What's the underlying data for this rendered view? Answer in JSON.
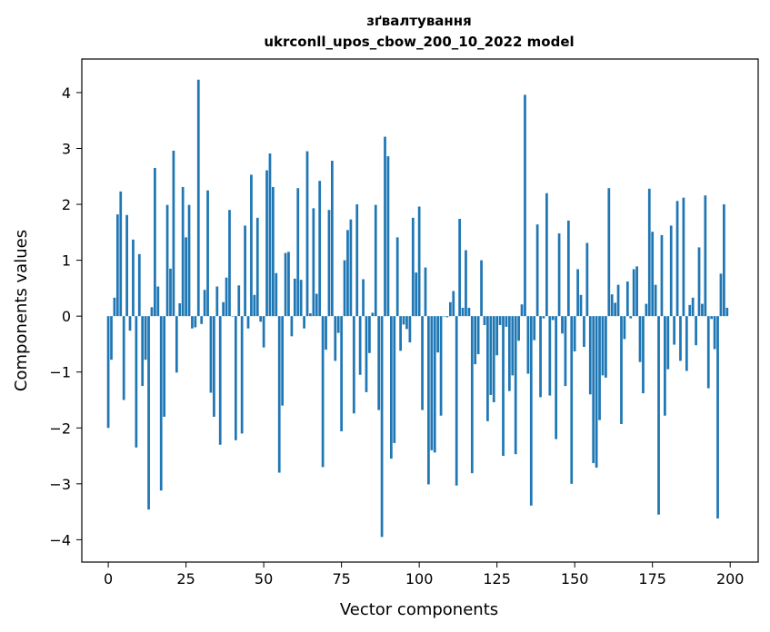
{
  "chart_data": {
    "type": "bar",
    "title": "зґвалтування",
    "subtitle": "ukrconll_upos_cbow_200_10_2022 model",
    "xlabel": "Vector components",
    "ylabel": "Components values",
    "xlim": [
      -8.5,
      209.0
    ],
    "ylim": [
      -4.4,
      4.6
    ],
    "xticks": [
      0,
      25,
      50,
      75,
      100,
      125,
      150,
      175,
      200
    ],
    "yticks": [
      -4,
      -3,
      -2,
      -1,
      0,
      1,
      2,
      3,
      4
    ],
    "xtick_labels": [
      "0",
      "25",
      "50",
      "75",
      "100",
      "125",
      "150",
      "175",
      "200"
    ],
    "ytick_labels": [
      "−4",
      "−3",
      "−2",
      "−1",
      "0",
      "1",
      "2",
      "3",
      "4"
    ],
    "grid": false,
    "bar_color": "#1f77b4",
    "x": [
      0,
      1,
      2,
      3,
      4,
      5,
      6,
      7,
      8,
      9,
      10,
      11,
      12,
      13,
      14,
      15,
      16,
      17,
      18,
      19,
      20,
      21,
      22,
      23,
      24,
      25,
      26,
      27,
      28,
      29,
      30,
      31,
      32,
      33,
      34,
      35,
      36,
      37,
      38,
      39,
      40,
      41,
      42,
      43,
      44,
      45,
      46,
      47,
      48,
      49,
      50,
      51,
      52,
      53,
      54,
      55,
      56,
      57,
      58,
      59,
      60,
      61,
      62,
      63,
      64,
      65,
      66,
      67,
      68,
      69,
      70,
      71,
      72,
      73,
      74,
      75,
      76,
      77,
      78,
      79,
      80,
      81,
      82,
      83,
      84,
      85,
      86,
      87,
      88,
      89,
      90,
      91,
      92,
      93,
      94,
      95,
      96,
      97,
      98,
      99,
      100,
      101,
      102,
      103,
      104,
      105,
      106,
      107,
      108,
      109,
      110,
      111,
      112,
      113,
      114,
      115,
      116,
      117,
      118,
      119,
      120,
      121,
      122,
      123,
      124,
      125,
      126,
      127,
      128,
      129,
      130,
      131,
      132,
      133,
      134,
      135,
      136,
      137,
      138,
      139,
      140,
      141,
      142,
      143,
      144,
      145,
      146,
      147,
      148,
      149,
      150,
      151,
      152,
      153,
      154,
      155,
      156,
      157,
      158,
      159,
      160,
      161,
      162,
      163,
      164,
      165,
      166,
      167,
      168,
      169,
      170,
      171,
      172,
      173,
      174,
      175,
      176,
      177,
      178,
      179,
      180,
      181,
      182,
      183,
      184,
      185,
      186,
      187,
      188,
      189,
      190,
      191,
      192,
      193,
      194,
      195,
      196,
      197,
      198,
      199
    ],
    "values": [
      -2.0,
      -0.78,
      0.33,
      1.82,
      2.23,
      -1.5,
      1.81,
      -0.26,
      1.37,
      -2.35,
      1.11,
      -1.25,
      -0.78,
      -3.46,
      0.16,
      2.65,
      0.53,
      -3.12,
      -1.8,
      1.99,
      0.85,
      2.96,
      -1.01,
      0.23,
      2.31,
      1.41,
      1.99,
      -0.22,
      -0.2,
      4.23,
      -0.14,
      0.47,
      2.25,
      -1.37,
      -1.8,
      0.53,
      -2.3,
      0.25,
      0.69,
      1.9,
      0.0,
      -2.22,
      0.55,
      -2.1,
      1.62,
      -0.22,
      2.53,
      0.38,
      1.76,
      -0.1,
      -0.56,
      2.61,
      2.91,
      2.31,
      0.77,
      -2.8,
      -1.6,
      1.13,
      1.15,
      -0.36,
      0.67,
      2.29,
      0.65,
      -0.22,
      2.95,
      0.05,
      1.93,
      0.4,
      2.42,
      -2.7,
      -0.6,
      1.9,
      2.78,
      -0.8,
      -0.3,
      -2.06,
      1.0,
      1.54,
      1.73,
      -1.74,
      2.0,
      -1.05,
      0.66,
      -1.36,
      -0.66,
      0.06,
      1.99,
      -1.68,
      -3.95,
      3.21,
      2.86,
      -2.55,
      -2.27,
      1.41,
      -0.62,
      -0.15,
      -0.23,
      -0.47,
      1.76,
      0.78,
      1.96,
      -1.68,
      0.87,
      -3.01,
      -2.4,
      -2.44,
      -0.65,
      -1.78,
      0.0,
      -0.02,
      0.25,
      0.45,
      -3.03,
      1.74,
      0.15,
      1.18,
      0.15,
      -2.81,
      -0.86,
      -0.68,
      1.0,
      -0.16,
      -1.88,
      -1.41,
      -1.54,
      -0.7,
      -0.16,
      -2.5,
      -0.19,
      -1.34,
      -1.06,
      -2.47,
      -0.44,
      0.21,
      3.96,
      -1.03,
      -3.39,
      -0.43,
      1.64,
      -1.45,
      -0.04,
      2.2,
      -1.42,
      -0.07,
      -2.2,
      1.48,
      -0.31,
      -1.25,
      1.71,
      -3.0,
      -0.63,
      0.84,
      0.38,
      -0.55,
      1.31,
      -1.4,
      -2.63,
      -2.71,
      -1.86,
      -1.06,
      -1.1,
      2.29,
      0.39,
      0.24,
      0.56,
      -1.93,
      -0.41,
      0.62,
      -0.04,
      0.84,
      0.89,
      -0.82,
      -1.38,
      0.22,
      2.28,
      1.51,
      0.56,
      -3.55,
      1.45,
      -1.78,
      -0.95,
      1.62,
      -0.51,
      2.06,
      -0.8,
      2.12,
      -0.98,
      0.2,
      0.33,
      -0.52,
      1.23,
      0.22,
      2.16,
      -1.29,
      -0.05,
      -0.59,
      -3.62,
      0.76,
      2.0,
      0.15
    ]
  }
}
